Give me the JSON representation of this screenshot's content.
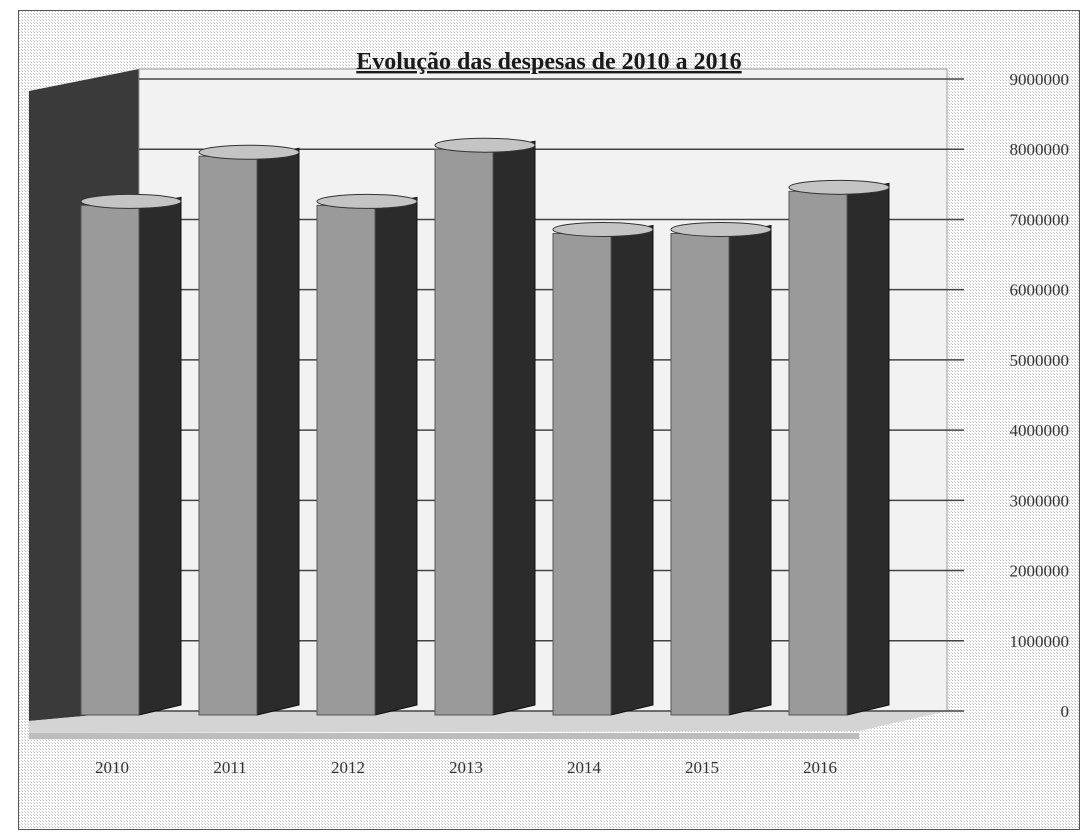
{
  "chart_data": {
    "type": "bar",
    "title": "Evolução das despesas de 2010 a 2016",
    "categories": [
      "2010",
      "2011",
      "2012",
      "2013",
      "2014",
      "2015",
      "2016"
    ],
    "values": [
      7200000,
      7900000,
      7200000,
      8000000,
      6800000,
      6800000,
      7400000
    ],
    "ylim": [
      0,
      9000000
    ],
    "yticks": [
      "0",
      "1000000",
      "2000000",
      "3000000",
      "4000000",
      "5000000",
      "6000000",
      "7000000",
      "8000000",
      "9000000"
    ],
    "xlabel": "",
    "ylabel": "",
    "grid": true,
    "legend": "none",
    "colors": {
      "front": "#9a9a9a",
      "side": "#2b2b2b",
      "top": "#c4c4c4",
      "wall": "#d8d8d8",
      "floor": "#cfcfcf"
    }
  }
}
